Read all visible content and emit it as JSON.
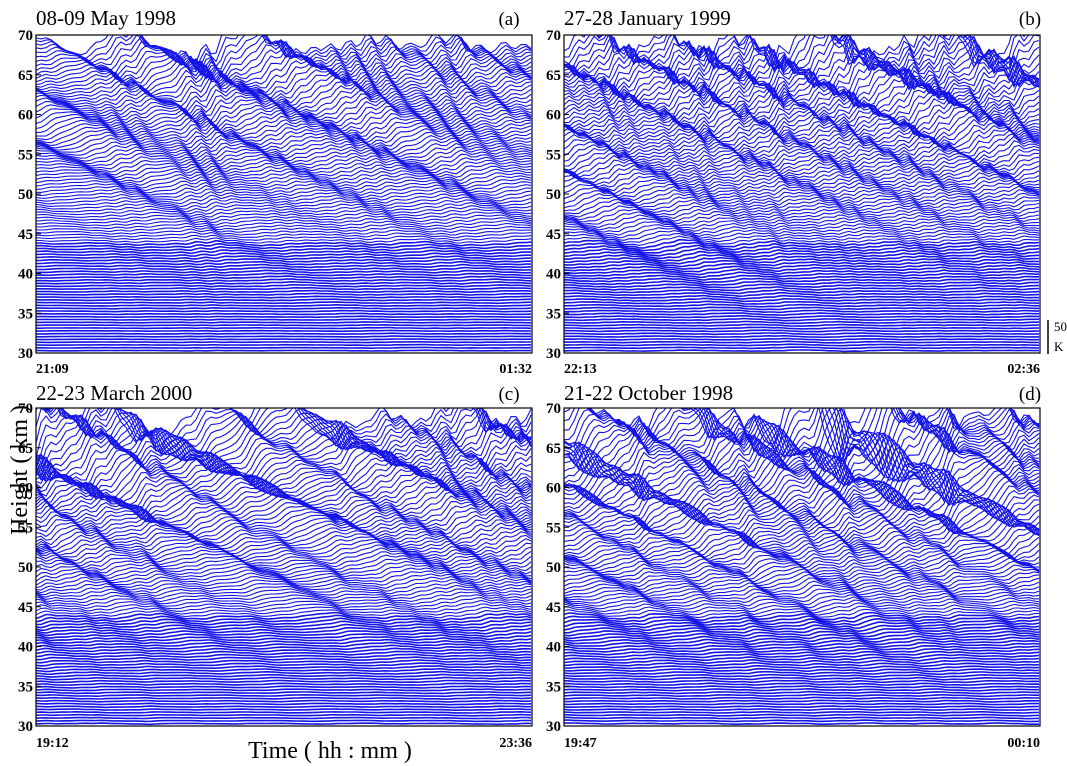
{
  "chart_data": [
    {
      "type": "line",
      "panel": "(a)",
      "title": "08-09 May 1998",
      "x_start": "21:09",
      "x_end": "01:32",
      "ylim": [
        30,
        70
      ],
      "y_ticks": [
        "30",
        "35",
        "40",
        "45",
        "50",
        "55",
        "60",
        "65",
        "70"
      ]
    },
    {
      "type": "line",
      "panel": "(b)",
      "title": "27-28 January 1999",
      "x_start": "22:13",
      "x_end": "02:36",
      "ylim": [
        30,
        70
      ],
      "y_ticks": [
        "30",
        "35",
        "40",
        "45",
        "50",
        "55",
        "60",
        "65",
        "70"
      ]
    },
    {
      "type": "line",
      "panel": "(c)",
      "title": "22-23 March 2000",
      "x_start": "19:12",
      "x_end": "23:36",
      "ylim": [
        30,
        70
      ],
      "y_ticks": [
        "30",
        "35",
        "40",
        "45",
        "50",
        "55",
        "60",
        "65",
        "70"
      ]
    },
    {
      "type": "line",
      "panel": "(d)",
      "title": "21-22 October 1998",
      "x_start": "19:47",
      "x_end": "00:10",
      "ylim": [
        30,
        70
      ],
      "y_ticks": [
        "30",
        "35",
        "40",
        "45",
        "50",
        "55",
        "60",
        "65",
        "70"
      ]
    }
  ],
  "labels": {
    "ylabel": "Height ( km )",
    "xlabel": "Time ( hh : mm )",
    "scale_value": "50",
    "scale_unit": "K"
  },
  "colors": {
    "profile": "#1414e6",
    "axis": "#000000"
  }
}
